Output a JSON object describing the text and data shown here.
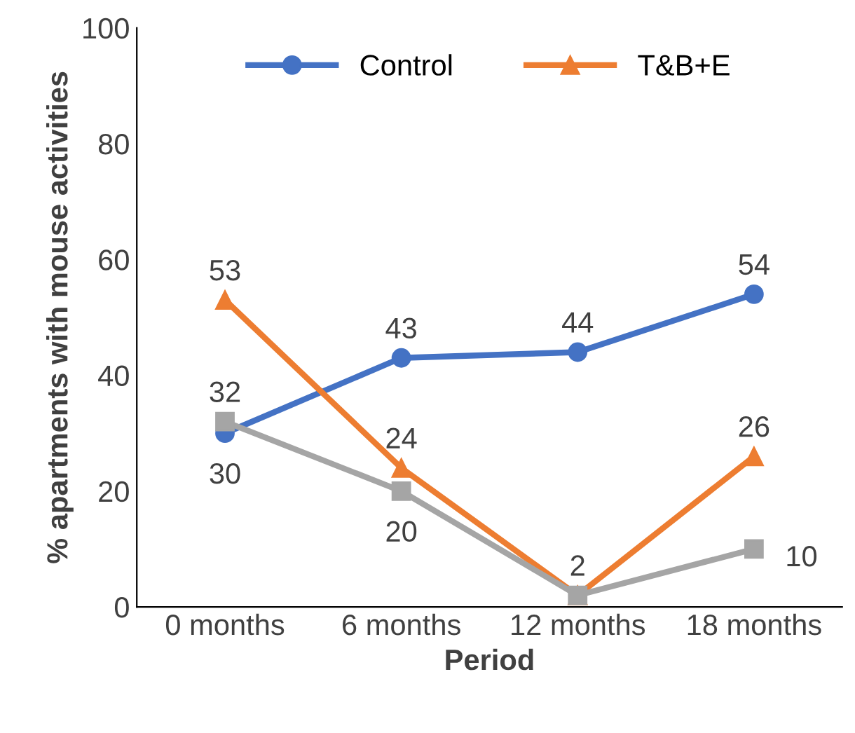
{
  "chart_data": {
    "type": "line",
    "xlabel": "Period",
    "ylabel": "% apartments with mouse activities",
    "categories": [
      "0 months",
      "6 months",
      "12 months",
      "18 months"
    ],
    "series": [
      {
        "name": "Control",
        "color": "#4472c4",
        "marker": "circle",
        "values": [
          30,
          43,
          44,
          54
        ],
        "value_labels": [
          "30",
          "43",
          "44",
          "54"
        ]
      },
      {
        "name": "T&B+E",
        "color": "#ed7d31",
        "marker": "triangle",
        "values": [
          53,
          24,
          2,
          26
        ],
        "value_labels": [
          "53",
          "24",
          "2",
          "26"
        ]
      },
      {
        "color": "#a5a5a5",
        "marker": "square",
        "values": [
          32,
          20,
          2,
          10
        ],
        "value_labels": [
          "32",
          "20",
          null,
          "10"
        ]
      }
    ],
    "ylim": [
      0,
      100
    ],
    "yticks": [
      0,
      20,
      40,
      60,
      80,
      100
    ],
    "grid": false,
    "legend": "top",
    "line_style": "solid"
  }
}
